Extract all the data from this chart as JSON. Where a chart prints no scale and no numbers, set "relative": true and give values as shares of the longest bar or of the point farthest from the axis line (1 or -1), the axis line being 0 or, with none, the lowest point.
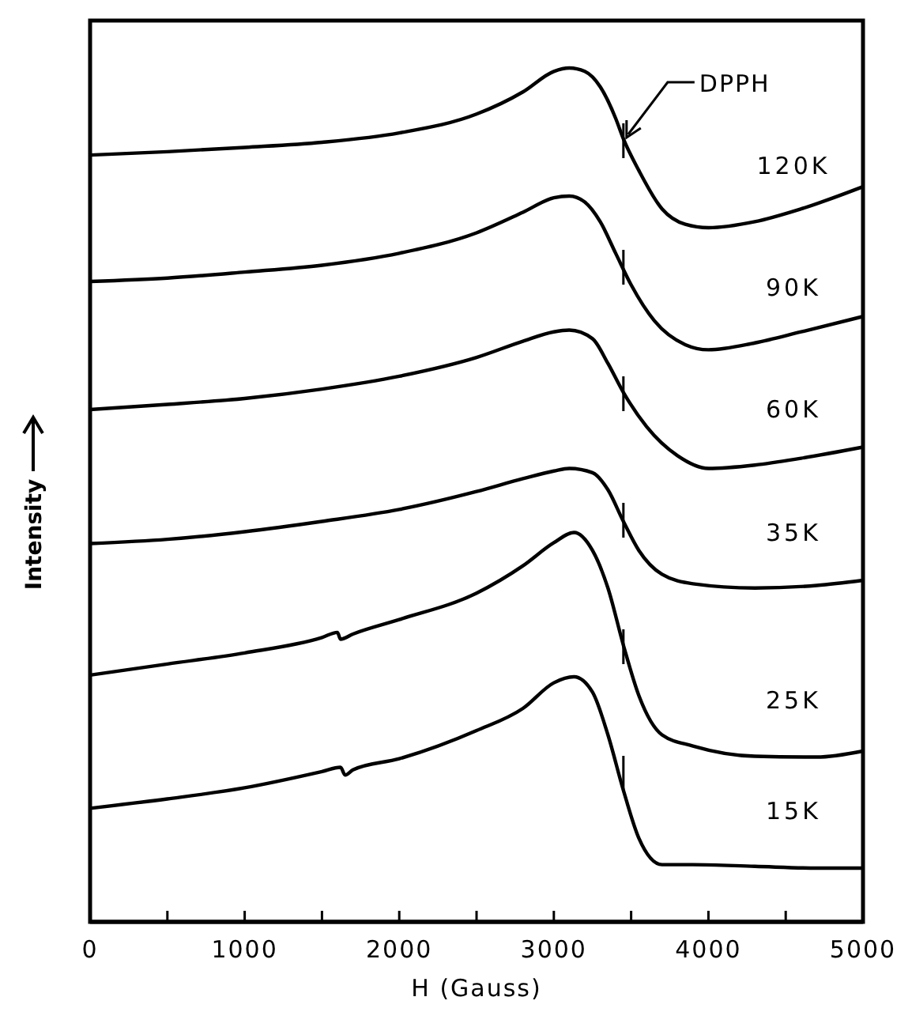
{
  "chart_data": {
    "type": "line",
    "relative": true,
    "xlabel": "H (Gauss)",
    "ylabel": "Intensity",
    "xlim": [
      0,
      5000
    ],
    "xticks": [
      0,
      {
        "value": 500,
        "label": null
      },
      1000,
      {
        "value": 1500,
        "label": null
      },
      2000,
      {
        "value": 2500,
        "label": null
      },
      3000,
      {
        "value": 3500,
        "label": null
      },
      4000,
      {
        "value": 4500,
        "label": null
      },
      5000
    ],
    "ref_lines": [
      {
        "axis": "x",
        "value": 3450,
        "label": "DPPH",
        "line_style": "dashed",
        "color": "#000000"
      }
    ],
    "series": [
      {
        "name": "120K",
        "color": "#000000",
        "x": [
          0,
          500,
          1000,
          1500,
          2000,
          2500,
          2800,
          3000,
          3100,
          3200,
          3300,
          3400,
          3450,
          3550,
          3700,
          3850,
          4000,
          4300,
          4600,
          5000
        ],
        "values": [
          0.898,
          0.902,
          0.907,
          0.913,
          0.924,
          0.946,
          0.972,
          0.996,
          1.0,
          0.996,
          0.978,
          0.941,
          0.917,
          0.88,
          0.835,
          0.817,
          0.813,
          0.82,
          0.835,
          0.861
        ]
      },
      {
        "name": "90K",
        "color": "#000000",
        "x": [
          0,
          500,
          1000,
          1500,
          2000,
          2500,
          2800,
          3000,
          3100,
          3200,
          3300,
          3400,
          3500,
          3650,
          3850,
          4000,
          4300,
          4600,
          5000
        ],
        "values": [
          0.75,
          0.754,
          0.761,
          0.769,
          0.783,
          0.807,
          0.831,
          0.848,
          0.85,
          0.843,
          0.82,
          0.783,
          0.746,
          0.704,
          0.676,
          0.67,
          0.678,
          0.691,
          0.709
        ]
      },
      {
        "name": "60K",
        "color": "#000000",
        "x": [
          0,
          500,
          1000,
          1500,
          2000,
          2500,
          2800,
          3000,
          3100,
          3250,
          3350,
          3450,
          3600,
          3800,
          4000,
          4300,
          4600,
          5000
        ],
        "values": [
          0.6,
          0.606,
          0.613,
          0.624,
          0.639,
          0.661,
          0.68,
          0.691,
          0.693,
          0.683,
          0.654,
          0.62,
          0.58,
          0.546,
          0.531,
          0.535,
          0.543,
          0.556
        ]
      },
      {
        "name": "35K",
        "color": "#000000",
        "x": [
          0,
          500,
          1000,
          1500,
          2000,
          2500,
          2800,
          3000,
          3100,
          3250,
          3350,
          3450,
          3550,
          3700,
          3900,
          4300,
          4700,
          5000
        ],
        "values": [
          0.443,
          0.448,
          0.457,
          0.469,
          0.483,
          0.504,
          0.519,
          0.528,
          0.531,
          0.526,
          0.506,
          0.469,
          0.435,
          0.407,
          0.396,
          0.391,
          0.394,
          0.4
        ]
      },
      {
        "name": "25K",
        "color": "#000000",
        "x": [
          0,
          500,
          1000,
          1500,
          1600,
          1620,
          1700,
          2000,
          2500,
          2800,
          3000,
          3130,
          3250,
          3350,
          3450,
          3550,
          3700,
          3900,
          4300,
          4700,
          5000
        ],
        "values": [
          0.289,
          0.302,
          0.315,
          0.333,
          0.339,
          0.331,
          0.337,
          0.354,
          0.385,
          0.417,
          0.444,
          0.456,
          0.435,
          0.391,
          0.324,
          0.265,
          0.219,
          0.206,
          0.194,
          0.193,
          0.2
        ]
      },
      {
        "name": "15K",
        "color": "#000000",
        "x": [
          0,
          500,
          1000,
          1500,
          1620,
          1650,
          1700,
          2000,
          2500,
          2800,
          3000,
          3130,
          3250,
          3350,
          3450,
          3550,
          3700,
          3900,
          4300,
          4700,
          5000
        ],
        "values": [
          0.133,
          0.144,
          0.157,
          0.176,
          0.181,
          0.172,
          0.178,
          0.191,
          0.224,
          0.25,
          0.28,
          0.287,
          0.269,
          0.219,
          0.154,
          0.098,
          0.067,
          0.067,
          0.065,
          0.063,
          0.063
        ]
      }
    ]
  }
}
